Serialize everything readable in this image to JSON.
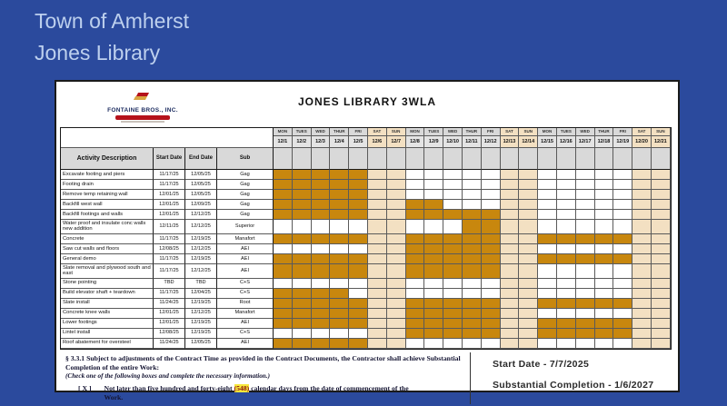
{
  "page": {
    "title_line1": "Town of Amherst",
    "title_line2": "Jones Library",
    "background_color": "#2b4a9d",
    "banner_text_color": "#bdd0ee"
  },
  "doc": {
    "logo": {
      "company": "FONTAINE BROS., INC.",
      "icon": "flag-icon"
    },
    "title": "JONES LIBRARY 3WLA",
    "table": {
      "col_headers": {
        "activity": "Activity Description",
        "start": "Start Date",
        "end": "End Date",
        "sub": "Sub"
      },
      "day_names": [
        "MON",
        "TUES",
        "WED",
        "THUR",
        "FRI",
        "SAT",
        "SUN",
        "MON",
        "TUES",
        "WED",
        "THUR",
        "FRI",
        "SAT",
        "SUN",
        "MON",
        "TUES",
        "WED",
        "THUR",
        "FRI",
        "SAT",
        "SUN"
      ],
      "dates": [
        "12/1",
        "12/2",
        "12/3",
        "12/4",
        "12/5",
        "12/6",
        "12/7",
        "12/8",
        "12/9",
        "12/10",
        "12/11",
        "12/12",
        "12/13",
        "12/14",
        "12/15",
        "12/16",
        "12/17",
        "12/18",
        "12/19",
        "12/20",
        "12/21"
      ],
      "weekend_days": [
        6,
        7,
        13,
        14,
        20,
        21
      ],
      "rows": [
        {
          "activity": "Excavate footing and piers",
          "start": "11/17/25",
          "end": "12/05/25",
          "sub": "Gag",
          "bars": [
            [
              1,
              5
            ]
          ]
        },
        {
          "activity": "Footing drain",
          "start": "11/17/25",
          "end": "12/05/25",
          "sub": "Gag",
          "bars": [
            [
              1,
              5
            ]
          ]
        },
        {
          "activity": "Remove temp retaining wall",
          "start": "12/01/25",
          "end": "12/05/25",
          "sub": "Gag",
          "bars": [
            [
              1,
              5
            ]
          ]
        },
        {
          "activity": "Backfill west wall",
          "start": "12/01/25",
          "end": "12/09/25",
          "sub": "Gag",
          "bars": [
            [
              1,
              5
            ],
            [
              8,
              9
            ]
          ]
        },
        {
          "activity": "Backfill footings and walls",
          "start": "12/01/25",
          "end": "12/12/25",
          "sub": "Gag",
          "bars": [
            [
              1,
              5
            ],
            [
              8,
              12
            ]
          ]
        },
        {
          "activity": "Water proof and insulate conc walls new addition",
          "start": "12/11/25",
          "end": "12/12/25",
          "sub": "Superior",
          "bars": [
            [
              11,
              12
            ]
          ]
        },
        {
          "activity": "Concrete",
          "start": "11/17/25",
          "end": "12/19/25",
          "sub": "Manafort",
          "bars": [
            [
              1,
              5
            ],
            [
              8,
              12
            ],
            [
              15,
              19
            ]
          ]
        },
        {
          "activity": "Saw cut walls and floors",
          "start": "12/08/25",
          "end": "12/12/25",
          "sub": "AEI",
          "bars": [
            [
              8,
              12
            ]
          ]
        },
        {
          "activity": "General demo",
          "start": "11/17/25",
          "end": "12/19/25",
          "sub": "AEI",
          "bars": [
            [
              1,
              5
            ],
            [
              8,
              12
            ],
            [
              15,
              19
            ]
          ]
        },
        {
          "activity": "Slate removal and plywood south and east",
          "start": "11/17/25",
          "end": "12/12/25",
          "sub": "AEI",
          "bars": [
            [
              1,
              5
            ],
            [
              8,
              12
            ]
          ]
        },
        {
          "activity": "Stone pointing",
          "start": "TBD",
          "end": "TBD",
          "sub": "C+S",
          "bars": []
        },
        {
          "activity": "Build elevator shaft + teardown",
          "start": "11/17/25",
          "end": "12/04/25",
          "sub": "C+S",
          "bars": [
            [
              1,
              4
            ]
          ]
        },
        {
          "activity": "Slate install",
          "start": "11/24/25",
          "end": "12/19/25",
          "sub": "Root",
          "bars": [
            [
              1,
              5
            ],
            [
              8,
              12
            ],
            [
              15,
              19
            ]
          ]
        },
        {
          "activity": "Concrete knee walls",
          "start": "12/01/25",
          "end": "12/12/25",
          "sub": "Manafort",
          "bars": [
            [
              1,
              5
            ],
            [
              8,
              12
            ]
          ]
        },
        {
          "activity": "Lower footings",
          "start": "12/01/25",
          "end": "12/19/25",
          "sub": "AEI",
          "bars": [
            [
              1,
              5
            ],
            [
              8,
              12
            ],
            [
              15,
              19
            ]
          ]
        },
        {
          "activity": "Lintel install",
          "start": "12/08/25",
          "end": "12/19/25",
          "sub": "C+S",
          "bars": [
            [
              8,
              12
            ],
            [
              15,
              19
            ]
          ]
        },
        {
          "activity": "Roof abatement for oversteel",
          "start": "11/24/25",
          "end": "12/05/25",
          "sub": "AEI",
          "bars": [
            [
              1,
              5
            ]
          ]
        }
      ]
    },
    "footer": {
      "clause_bold": "§ 3.3.1 Subject to adjustments of the Contract Time as provided in the Contract Documents, the Contractor shall achieve Substantial Completion of the entire Work:",
      "clause_italic": "(Check one of the following boxes and complete the necessary information.)",
      "checkbox": "[ X ]",
      "line_pre": "Not later than five hundred and forty-eight ",
      "highlight": "(548)",
      "line_post": " calendar days from the date of commencement of the Work.",
      "start_date": "Start Date - 7/7/2025",
      "substantial": "Substantial Completion -  1/6/2027"
    },
    "colors": {
      "bar_fill": "#c8870e",
      "weekend": "#f3e0c2",
      "header_gray": "#d9d9d9",
      "highlight_bg": "#f7e83a",
      "logo_red": "#b5121b",
      "logo_gold": "#d9a441"
    }
  }
}
